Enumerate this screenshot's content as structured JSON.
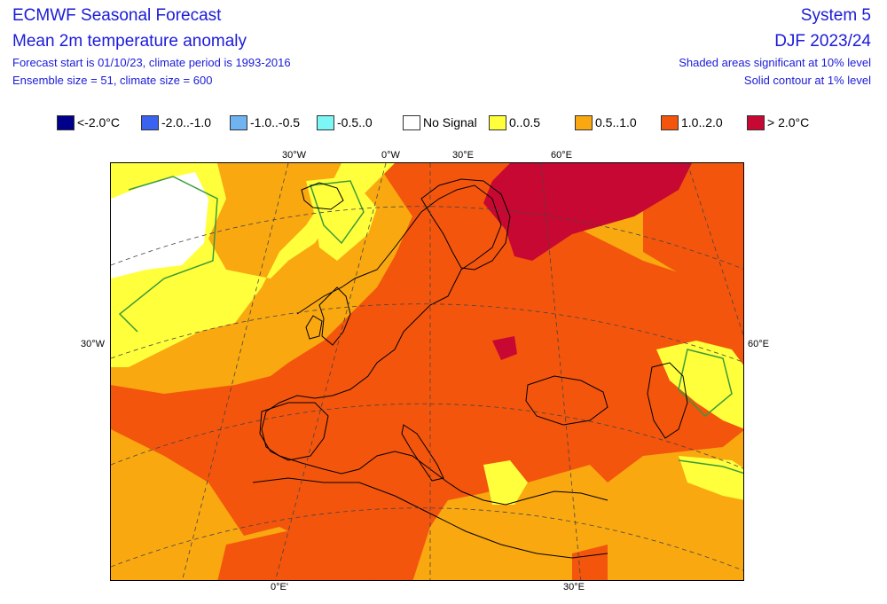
{
  "header": {
    "title": "ECMWF Seasonal Forecast",
    "subtitle": "Mean 2m temperature anomaly",
    "forecast_start": "Forecast start is 01/10/23, climate period is 1993-2016",
    "ensemble": "Ensemble size = 51, climate size = 600",
    "system": "System 5",
    "period": "DJF 2023/24",
    "significance_shaded": "Shaded areas significant at 10% level",
    "significance_contour": "Solid contour at 1% level"
  },
  "legend": [
    {
      "label": "<-2.0°C",
      "color": "#00008b"
    },
    {
      "label": "-2.0..-1.0",
      "color": "#3a63f0"
    },
    {
      "label": "-1.0..-0.5",
      "color": "#6fb3f0"
    },
    {
      "label": "-0.5..0",
      "color": "#7df7f5"
    },
    {
      "label": "No Signal",
      "color": "#ffffff"
    },
    {
      "label": "0..0.5",
      "color": "#ffff3c"
    },
    {
      "label": "0.5..1.0",
      "color": "#f9a810"
    },
    {
      "label": "1.0..2.0",
      "color": "#f3550d"
    },
    {
      "label": "> 2.0°C",
      "color": "#c70832"
    }
  ],
  "grid_labels": {
    "top": [
      "30°W",
      "0°W",
      "30°E",
      "60°E"
    ],
    "left": [
      "30°W"
    ],
    "right": [
      "60°E"
    ],
    "bottom": [
      "0°E'",
      "30°E"
    ]
  },
  "colors": {
    "header_text": "#1b1bd9",
    "contour_1pct": "#3a9a3a",
    "coastline": "#000000",
    "grid": "#444444"
  }
}
